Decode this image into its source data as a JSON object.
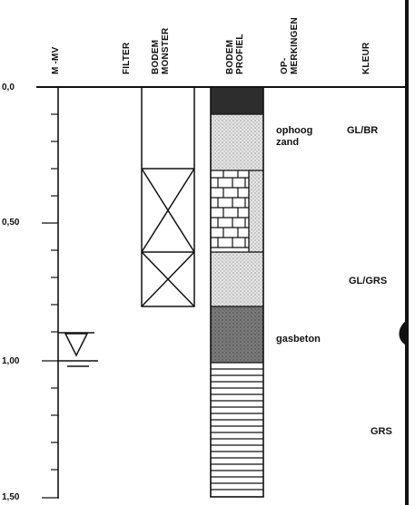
{
  "headers": {
    "depth": "M -MV",
    "filter": "FILTER",
    "sample": [
      "BODEM",
      "MONSTER"
    ],
    "profile": [
      "BODEM",
      "PROFIEL"
    ],
    "remarks": [
      "OP-",
      "MERKINGEN"
    ],
    "color": "KLEUR"
  },
  "depth_labels": [
    "0,0",
    "0,50",
    "1,00",
    "1,50"
  ],
  "remarks": {
    "fill": [
      "ophoog",
      "zand"
    ],
    "gasbeton": "gasbeton"
  },
  "colors": {
    "gl_br": "GL/BR",
    "gl_grs": "GL/GRS",
    "grs": "GRS"
  }
}
